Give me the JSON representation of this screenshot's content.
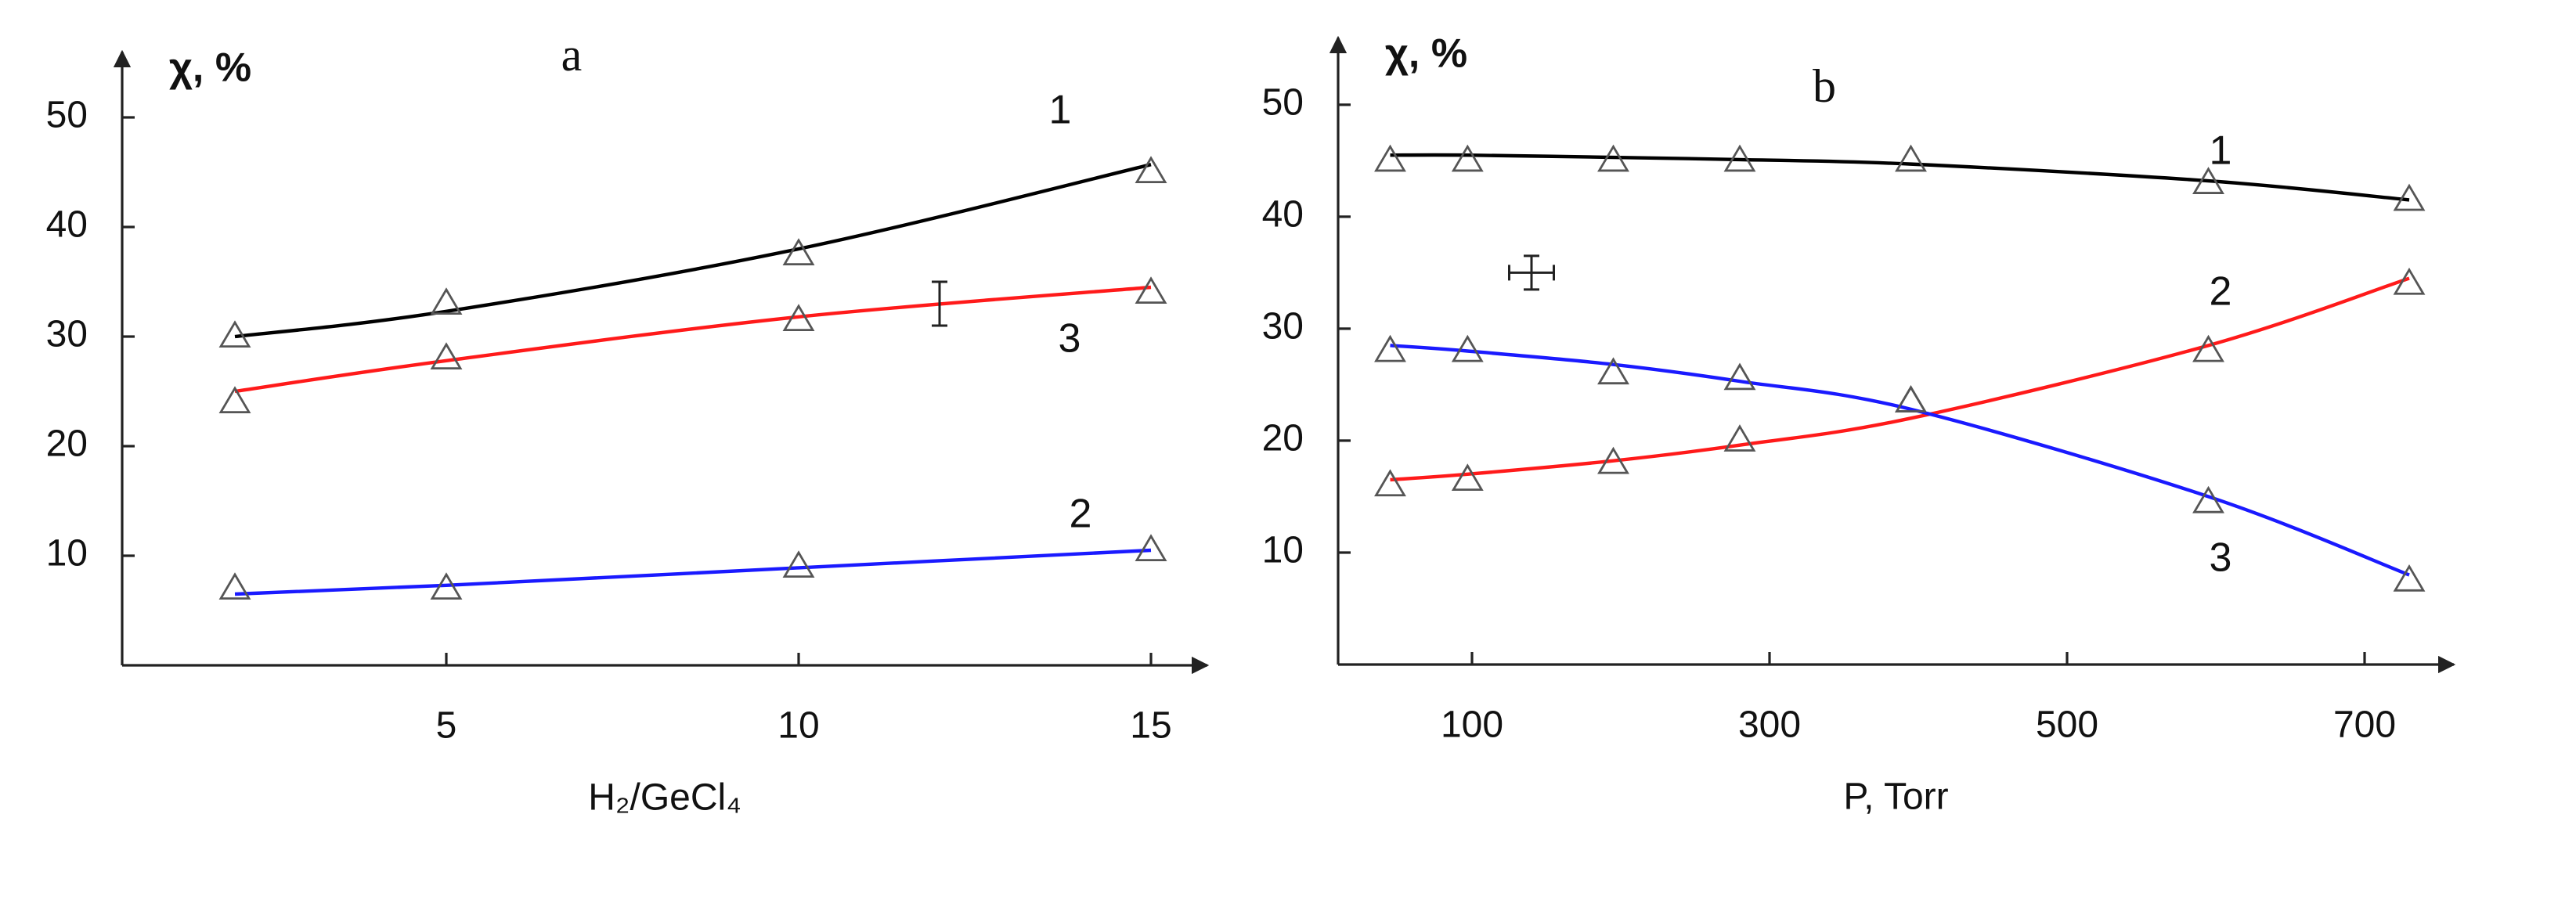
{
  "chart_data": [
    {
      "type": "line",
      "panel_label": "a",
      "y_label": "χ, %",
      "x_label": "H₂/GeCl₄",
      "xlim": [
        0.4,
        15.8
      ],
      "ylim": [
        0,
        56
      ],
      "xticks": [
        5,
        10,
        15
      ],
      "yticks": [
        10,
        20,
        30,
        40,
        50
      ],
      "series": [
        {
          "name": "1",
          "color": "#000000",
          "x": [
            2,
            5,
            10,
            15
          ],
          "values": [
            30,
            33,
            37.5,
            45
          ],
          "fit": [
            30,
            32.3,
            38,
            45.7
          ]
        },
        {
          "name": "2",
          "color": "#1a1aff",
          "x": [
            2,
            5,
            10,
            15
          ],
          "values": [
            7,
            7,
            9,
            10.5
          ],
          "fit": [
            6.5,
            7.3,
            8.9,
            10.5
          ]
        },
        {
          "name": "3",
          "color": "#ff1a1a",
          "x": [
            2,
            5,
            10,
            15
          ],
          "values": [
            24,
            28,
            31.5,
            34
          ],
          "fit": [
            25,
            27.8,
            31.8,
            34.5
          ]
        }
      ],
      "error_bar": {
        "x": 12,
        "y": 33,
        "yerr": 2
      }
    },
    {
      "type": "line",
      "panel_label": "b",
      "y_label": "χ, %",
      "x_label": "P, Torr",
      "xlim": [
        10,
        760
      ],
      "ylim": [
        0,
        56
      ],
      "xticks": [
        100,
        300,
        500,
        700
      ],
      "yticks": [
        10,
        20,
        30,
        40,
        50
      ],
      "series": [
        {
          "name": "1",
          "color": "#000000",
          "x": [
            45,
            97,
            195,
            280,
            395,
            595,
            730
          ],
          "values": [
            45,
            45,
            45,
            45,
            45,
            43,
            41.5
          ],
          "fit": [
            45.5,
            45.5,
            45.3,
            45.1,
            44.7,
            43.2,
            41.5
          ]
        },
        {
          "name": "2",
          "color": "#ff1a1a",
          "x": [
            45,
            97,
            195,
            280,
            395,
            595,
            730
          ],
          "values": [
            16,
            16.5,
            18,
            20,
            23.5,
            28,
            34
          ],
          "fit": [
            16.5,
            17,
            18.2,
            19.6,
            22,
            28.5,
            34.5
          ]
        },
        {
          "name": "3",
          "color": "#1a1aff",
          "x": [
            45,
            97,
            195,
            280,
            395,
            595,
            730
          ],
          "values": [
            28,
            28,
            26,
            25.5,
            23.5,
            14.5,
            7.5
          ],
          "fit": [
            28.5,
            28,
            26.8,
            25.3,
            22.8,
            15,
            8
          ]
        }
      ],
      "error_bar": {
        "x": 140,
        "y": 35,
        "xerr": 15,
        "yerr": 1.5
      }
    }
  ]
}
